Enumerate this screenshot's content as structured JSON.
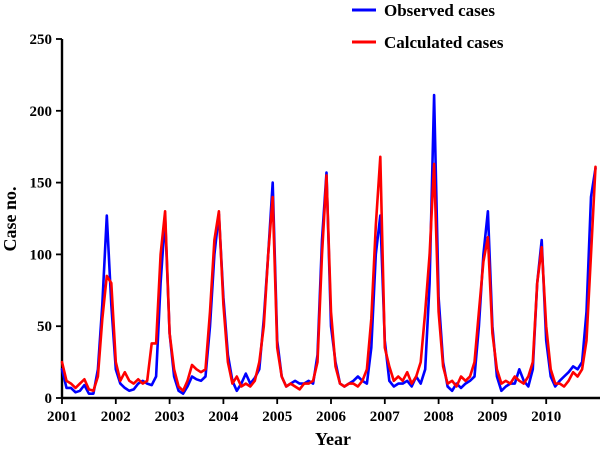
{
  "chart_data": {
    "type": "line",
    "title": "",
    "xlabel": "Year",
    "ylabel": "Case no.",
    "xlim": [
      2001,
      2011
    ],
    "ylim": [
      0,
      250
    ],
    "x_ticks": [
      "2001",
      "2002",
      "2003",
      "2004",
      "2005",
      "2006",
      "2007",
      "2008",
      "2009",
      "2010"
    ],
    "y_ticks": [
      "0",
      "50",
      "100",
      "150",
      "200",
      "250"
    ],
    "grid": false,
    "legend_position": "top-right",
    "x_unit": "monthly observations, January 2001 to December 2010",
    "series": [
      {
        "name": "Observed cases",
        "color": "#0000ff",
        "values": [
          20,
          7,
          7,
          4,
          5,
          9,
          3,
          3,
          20,
          65,
          127,
          65,
          20,
          10,
          7,
          5,
          6,
          10,
          12,
          10,
          9,
          15,
          80,
          126,
          45,
          15,
          5,
          3,
          8,
          15,
          13,
          12,
          15,
          50,
          100,
          128,
          70,
          30,
          12,
          5,
          10,
          17,
          10,
          14,
          20,
          55,
          100,
          150,
          40,
          15,
          8,
          10,
          12,
          10,
          10,
          12,
          10,
          30,
          110,
          157,
          50,
          25,
          10,
          8,
          10,
          12,
          15,
          12,
          10,
          35,
          100,
          127,
          40,
          12,
          8,
          10,
          10,
          12,
          8,
          15,
          10,
          20,
          80,
          211,
          70,
          25,
          8,
          5,
          10,
          7,
          10,
          12,
          15,
          50,
          100,
          130,
          50,
          15,
          5,
          8,
          10,
          10,
          20,
          12,
          8,
          20,
          80,
          110,
          40,
          15,
          8,
          12,
          15,
          18,
          22,
          20,
          25,
          60,
          140,
          160
        ]
      },
      {
        "name": "Calculated cases",
        "color": "#ff0000",
        "values": [
          25,
          12,
          10,
          7,
          10,
          13,
          6,
          5,
          15,
          55,
          85,
          80,
          25,
          12,
          18,
          12,
          10,
          13,
          10,
          12,
          38,
          38,
          100,
          130,
          45,
          20,
          8,
          5,
          12,
          23,
          20,
          18,
          20,
          60,
          110,
          130,
          65,
          25,
          10,
          15,
          8,
          10,
          8,
          12,
          25,
          50,
          100,
          140,
          35,
          15,
          8,
          10,
          8,
          6,
          10,
          10,
          12,
          25,
          100,
          155,
          60,
          22,
          10,
          8,
          10,
          10,
          8,
          12,
          20,
          55,
          120,
          168,
          35,
          22,
          12,
          15,
          12,
          18,
          10,
          15,
          25,
          60,
          100,
          163,
          60,
          22,
          10,
          12,
          8,
          15,
          12,
          15,
          25,
          60,
          95,
          112,
          45,
          20,
          10,
          12,
          10,
          15,
          12,
          10,
          15,
          25,
          80,
          105,
          50,
          20,
          10,
          10,
          8,
          12,
          18,
          15,
          20,
          40,
          100,
          161
        ]
      }
    ]
  }
}
